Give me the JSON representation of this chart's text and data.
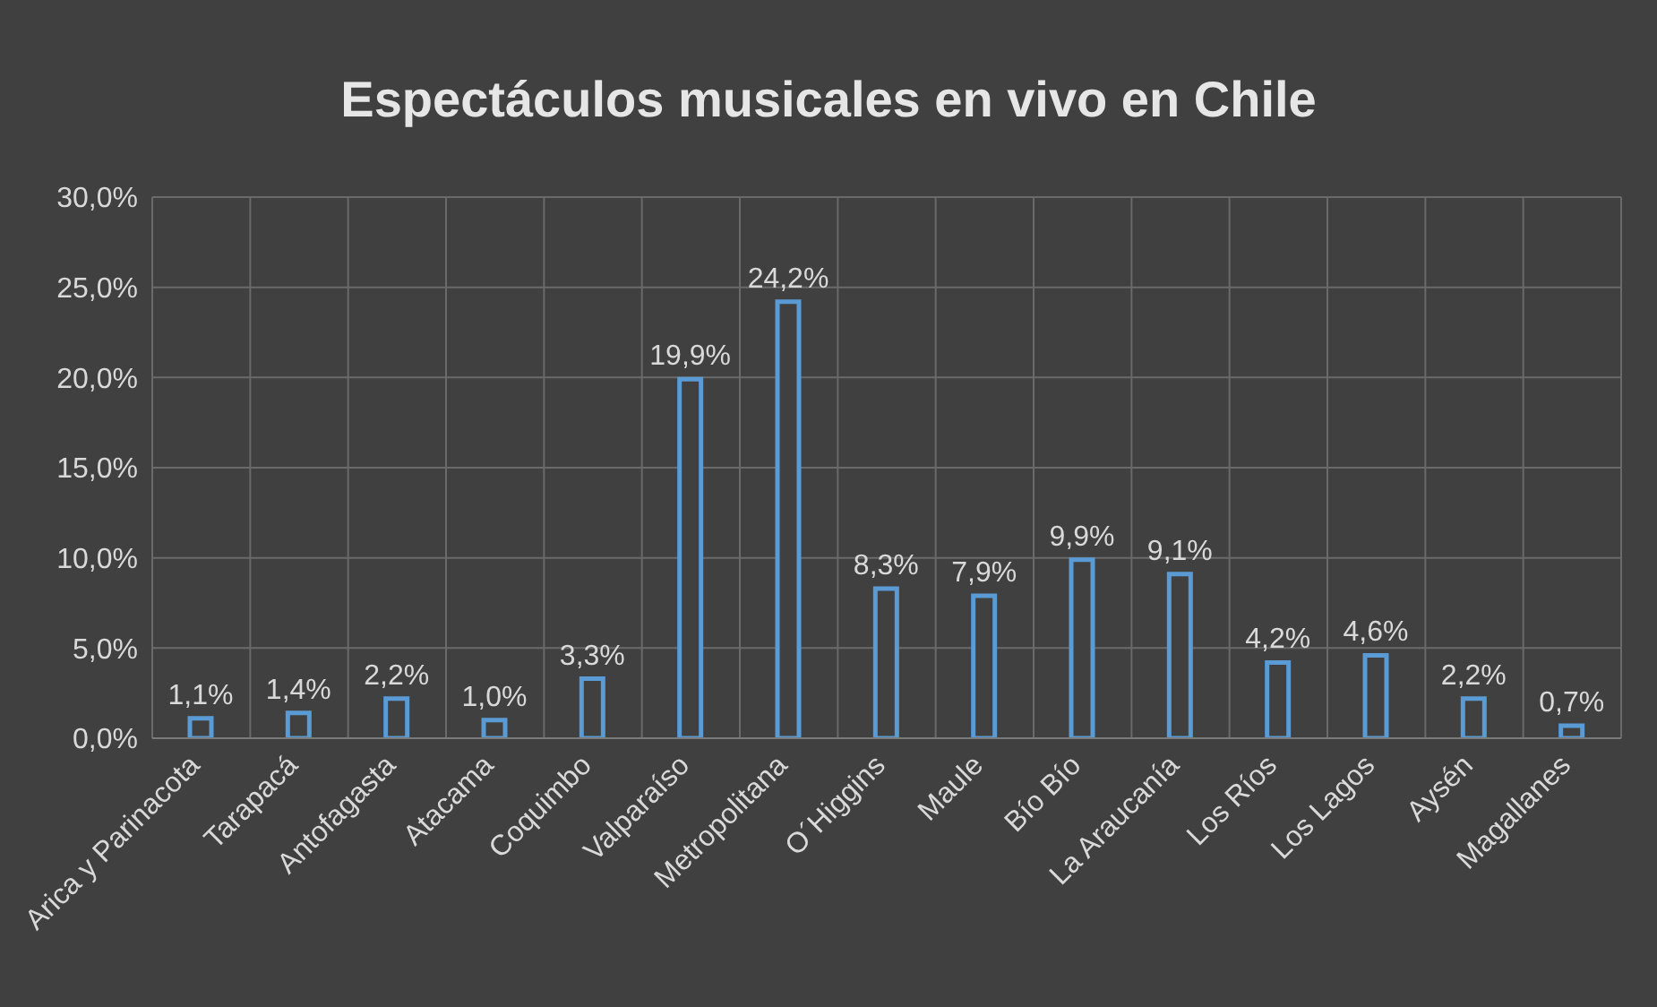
{
  "chart_data": {
    "type": "bar",
    "title": "Espectáculos musicales en vivo en Chile",
    "categories": [
      "Arica y Parinacota",
      "Tarapacá",
      "Antofagasta",
      "Atacama",
      "Coquimbo",
      "Valparaíso",
      "Metropolitana",
      "O´Higgins",
      "Maule",
      "Bío Bío",
      "La Araucanía",
      "Los Ríos",
      "Los Lagos",
      "Aysén",
      "Magallanes"
    ],
    "values": [
      1.1,
      1.4,
      2.2,
      1.0,
      3.3,
      19.9,
      24.2,
      8.3,
      7.9,
      9.9,
      9.1,
      4.2,
      4.6,
      2.2,
      0.7
    ],
    "value_labels": [
      "1,1%",
      "1,4%",
      "2,2%",
      "1,0%",
      "3,3%",
      "19,9%",
      "24,2%",
      "8,3%",
      "7,9%",
      "9,9%",
      "9,1%",
      "4,2%",
      "4,6%",
      "2,2%",
      "0,7%"
    ],
    "color": "#5b9bd5",
    "ylim": [
      0,
      30
    ],
    "yticks": [
      {
        "value": 0,
        "label": "0,0%"
      },
      {
        "value": 5,
        "label": "5,0%"
      },
      {
        "value": 10,
        "label": "10,0%"
      },
      {
        "value": 15,
        "label": "15,0%"
      },
      {
        "value": 20,
        "label": "20,0%"
      },
      {
        "value": 25,
        "label": "25,0%"
      },
      {
        "value": 30,
        "label": "30,0%"
      }
    ],
    "grid": true
  }
}
